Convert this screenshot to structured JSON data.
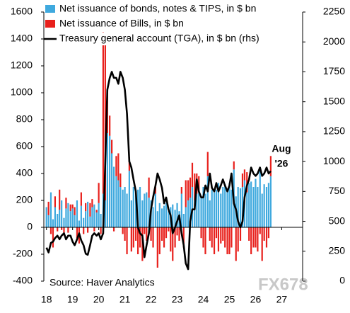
{
  "chart_data": {
    "type": "bar-line",
    "legend": [
      "Net issuance of bonds, notes & TIPS, in $ bn",
      "Net issuance of Bills, in $ bn",
      "Treasury general account (TGA), in $ bn (rhs)"
    ],
    "annotations": [
      "Aug",
      "'26"
    ],
    "source": "Source: Haver Analytics",
    "watermark": "FX678",
    "xlim": [
      2017.9,
      2027.8
    ],
    "xticks": [
      {
        "value": 2018,
        "label": "18"
      },
      {
        "value": 2019,
        "label": "19"
      },
      {
        "value": 2020,
        "label": "20"
      },
      {
        "value": 2021,
        "label": "21"
      },
      {
        "value": 2022,
        "label": "22"
      },
      {
        "value": 2023,
        "label": "23"
      },
      {
        "value": 2024,
        "label": "24"
      },
      {
        "value": 2025,
        "label": "25"
      },
      {
        "value": 2026,
        "label": "26"
      },
      {
        "value": 2027,
        "label": "27"
      }
    ],
    "ylim": [
      -400,
      1600
    ],
    "yticks": [
      -400,
      -200,
      0,
      200,
      400,
      600,
      800,
      1000,
      1200,
      1400,
      1600
    ],
    "y2lim": [
      0,
      2250
    ],
    "y2ticks": [
      0,
      250,
      500,
      750,
      1000,
      1250,
      1500,
      1750,
      2000,
      2250
    ],
    "x": [
      2018.0,
      2018.08,
      2018.17,
      2018.25,
      2018.33,
      2018.42,
      2018.5,
      2018.58,
      2018.67,
      2018.75,
      2018.83,
      2018.92,
      2019.0,
      2019.08,
      2019.17,
      2019.25,
      2019.33,
      2019.42,
      2019.5,
      2019.58,
      2019.67,
      2019.75,
      2019.83,
      2019.92,
      2020.0,
      2020.08,
      2020.17,
      2020.25,
      2020.33,
      2020.42,
      2020.5,
      2020.58,
      2020.67,
      2020.75,
      2020.83,
      2020.92,
      2021.0,
      2021.08,
      2021.17,
      2021.25,
      2021.33,
      2021.42,
      2021.5,
      2021.58,
      2021.67,
      2021.75,
      2021.83,
      2021.92,
      2022.0,
      2022.08,
      2022.17,
      2022.25,
      2022.33,
      2022.42,
      2022.5,
      2022.58,
      2022.67,
      2022.75,
      2022.83,
      2022.92,
      2023.0,
      2023.08,
      2023.17,
      2023.25,
      2023.33,
      2023.42,
      2023.5,
      2023.58,
      2023.67,
      2023.75,
      2023.83,
      2023.92,
      2024.0,
      2024.08,
      2024.17,
      2024.25,
      2024.33,
      2024.42,
      2024.5,
      2024.58,
      2024.67,
      2024.75,
      2024.83,
      2024.92,
      2025.0,
      2025.08,
      2025.17,
      2025.25,
      2025.33,
      2025.42,
      2025.5,
      2025.58,
      2025.67,
      2025.75,
      2025.83,
      2025.92,
      2026.0,
      2026.08,
      2026.17,
      2026.25,
      2026.33,
      2026.42,
      2026.5,
      2026.58
    ],
    "series": [
      {
        "name": "Net issuance of bonds, notes & TIPS, in $ bn",
        "color": "#3fa9de",
        "values": [
          150,
          90,
          260,
          60,
          150,
          100,
          130,
          200,
          70,
          140,
          180,
          120,
          140,
          90,
          200,
          50,
          160,
          70,
          120,
          190,
          80,
          150,
          170,
          110,
          180,
          100,
          250,
          200,
          700,
          680,
          550,
          450,
          380,
          350,
          300,
          280,
          300,
          250,
          420,
          200,
          300,
          260,
          280,
          300,
          200,
          250,
          260,
          220,
          200,
          150,
          250,
          120,
          180,
          140,
          160,
          180,
          120,
          150,
          170,
          130,
          180,
          120,
          250,
          100,
          150,
          200,
          220,
          300,
          200,
          250,
          280,
          230,
          300,
          250,
          380,
          200,
          280,
          260,
          280,
          330,
          250,
          300,
          320,
          280,
          330,
          280,
          430,
          230,
          300,
          290,
          300,
          350,
          260,
          330,
          340,
          300,
          360,
          300,
          440,
          250,
          320,
          300,
          330,
          380
        ]
      },
      {
        "name": "Net issuance of Bills, in $ bn",
        "color": "#e8201c",
        "values": [
          0,
          100,
          -50,
          -150,
          80,
          -30,
          150,
          -20,
          -60,
          80,
          -40,
          50,
          30,
          60,
          -80,
          -120,
          100,
          -50,
          60,
          -40,
          100,
          60,
          -30,
          20,
          150,
          -50,
          1200,
          1200,
          300,
          150,
          100,
          -30,
          150,
          200,
          100,
          -50,
          -100,
          -200,
          100,
          -180,
          -150,
          -100,
          -200,
          -150,
          -250,
          -50,
          -100,
          150,
          -100,
          -150,
          50,
          -300,
          -200,
          -100,
          -150,
          -80,
          -30,
          -180,
          -250,
          -150,
          -60,
          -100,
          50,
          -150,
          200,
          150,
          150,
          180,
          200,
          150,
          100,
          -80,
          -150,
          -200,
          180,
          -100,
          -150,
          -200,
          -80,
          -180,
          -120,
          -100,
          -150,
          -200,
          -200,
          -150,
          60,
          -250,
          -180,
          -100,
          100,
          80,
          150,
          -100,
          -200,
          -150,
          -150,
          -180,
          -50,
          -250,
          -100,
          -150,
          -80,
          150
        ]
      },
      {
        "name": "Treasury general account (TGA), in $ bn (rhs)",
        "color": "#000000",
        "axis": "y2",
        "values": [
          280,
          240,
          320,
          330,
          360,
          380,
          350,
          380,
          400,
          350,
          380,
          380,
          330,
          300,
          350,
          400,
          340,
          300,
          230,
          220,
          300,
          380,
          400,
          380,
          400,
          350,
          400,
          1000,
          1600,
          1700,
          1750,
          1700,
          1700,
          1650,
          1750,
          1700,
          1600,
          1400,
          1000,
          950,
          850,
          750,
          450,
          400,
          380,
          200,
          300,
          400,
          600,
          700,
          800,
          900,
          850,
          780,
          650,
          700,
          600,
          550,
          400,
          450,
          500,
          550,
          400,
          300,
          150,
          100,
          500,
          600,
          600,
          850,
          750,
          700,
          700,
          800,
          750,
          900,
          780,
          750,
          820,
          750,
          800,
          850,
          800,
          750,
          800,
          900,
          650,
          600,
          500,
          450,
          500,
          700,
          800,
          850,
          950,
          900,
          880,
          900,
          950,
          880,
          900,
          950,
          900,
          920
        ]
      }
    ]
  }
}
